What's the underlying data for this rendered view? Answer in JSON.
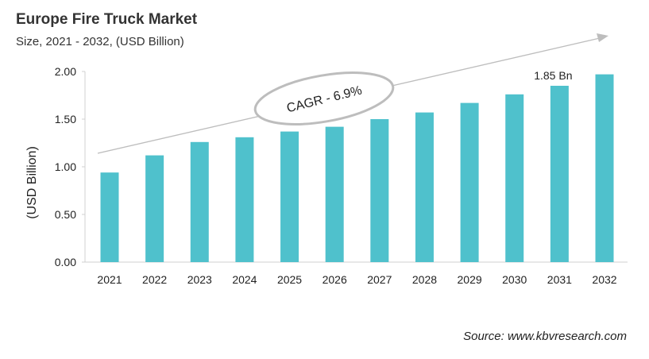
{
  "chart_data": {
    "type": "bar",
    "title": "Europe Fire Truck Market",
    "subtitle": "Size, 2021 - 2032, (USD Billion)",
    "xlabel": "",
    "ylabel": "(USD Billion)",
    "categories": [
      "2021",
      "2022",
      "2023",
      "2024",
      "2025",
      "2026",
      "2027",
      "2028",
      "2029",
      "2030",
      "2031",
      "2032"
    ],
    "values": [
      0.94,
      1.12,
      1.26,
      1.31,
      1.37,
      1.42,
      1.5,
      1.57,
      1.67,
      1.76,
      1.85,
      1.97
    ],
    "ylim": [
      0,
      2.0
    ],
    "yticks": [
      "0.00",
      "0.50",
      "1.00",
      "1.50",
      "2.00"
    ],
    "grid": false,
    "bar_color": "#4FC1CC",
    "data_labels": [
      {
        "category": "2031",
        "text": "1.85 Bn"
      }
    ],
    "annotation": "CAGR - 6.9%",
    "source": "Source: www.kbvresearch.com"
  }
}
